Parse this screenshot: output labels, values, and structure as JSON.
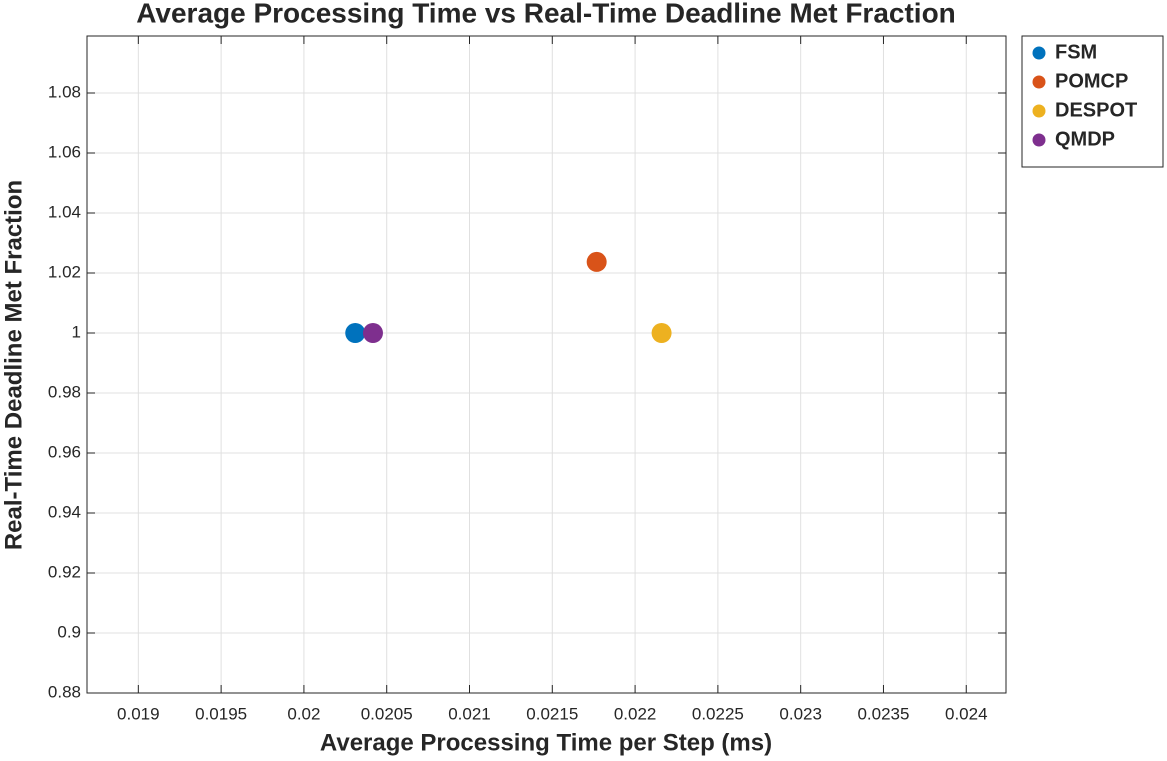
{
  "chart_data": {
    "type": "scatter",
    "title": "Average Processing Time vs Real-Time Deadline Met Fraction",
    "xlabel": "Average Processing Time per Step (ms)",
    "ylabel": "Real-Time Deadline Met Fraction",
    "xlim": [
      0.01869,
      0.02424
    ],
    "ylim": [
      0.88,
      1.099
    ],
    "xticks": [
      0.019,
      0.0195,
      0.02,
      0.0205,
      0.021,
      0.0215,
      0.022,
      0.0225,
      0.023,
      0.0235,
      0.024
    ],
    "yticks": [
      0.88,
      0.9,
      0.92,
      0.94,
      0.96,
      0.98,
      1,
      1.02,
      1.04,
      1.06,
      1.08
    ],
    "grid": true,
    "legend": "outside-top-right",
    "series": [
      {
        "name": "FSM",
        "color": "#0072BD",
        "x": [
          0.02031
        ],
        "values": [
          1
        ]
      },
      {
        "name": "POMCP",
        "color": "#D95319",
        "x": [
          0.021768
        ],
        "values": [
          1.0237
        ]
      },
      {
        "name": "DESPOT",
        "color": "#EDB120",
        "x": [
          0.02216
        ],
        "values": [
          1
        ]
      },
      {
        "name": "QMDP",
        "color": "#7E2F8E",
        "x": [
          0.020417
        ],
        "values": [
          1
        ]
      }
    ]
  }
}
